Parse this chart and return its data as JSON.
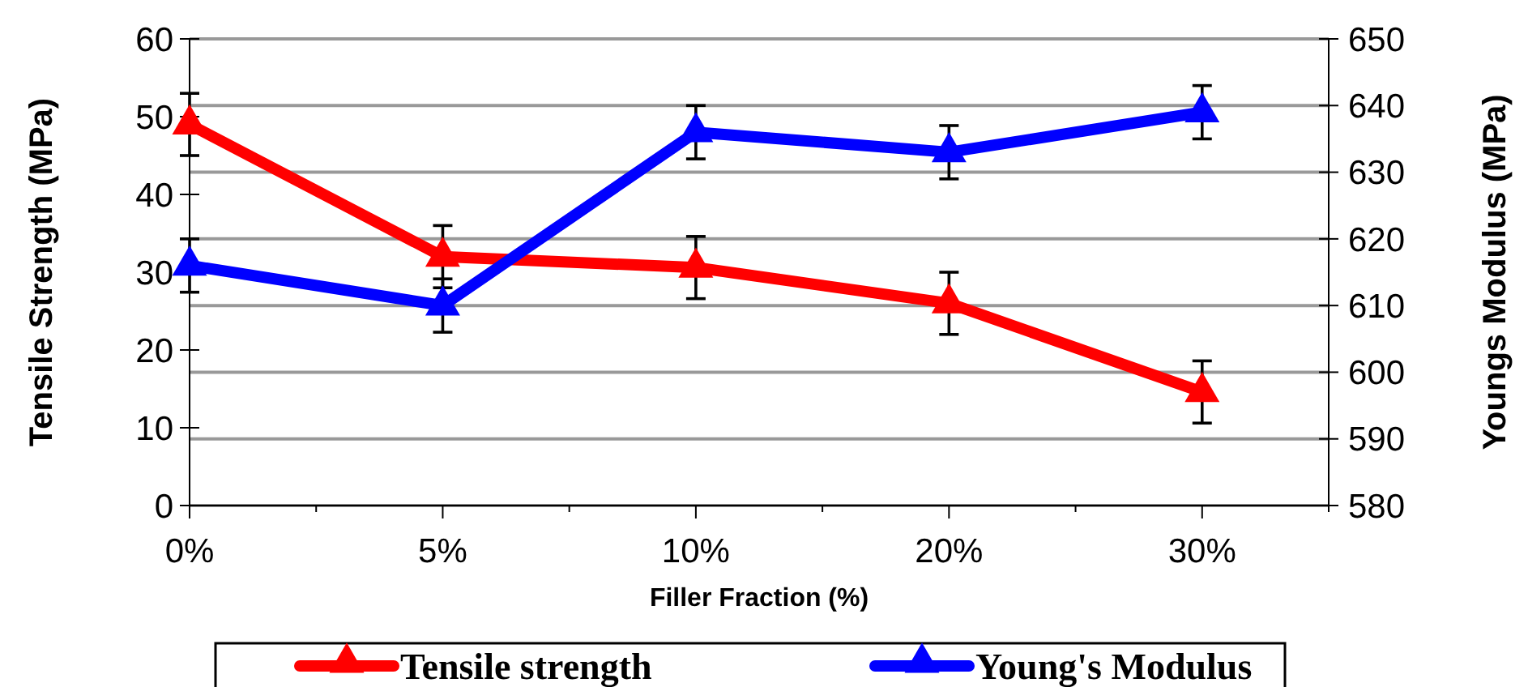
{
  "chart_data": {
    "type": "line",
    "xlabel": "Filler  Fraction (%)",
    "ylabel": "Tensile Strength (MPa)",
    "y2label": "Youngs Modulus (MPa)",
    "categories": [
      "0%",
      "5%",
      "10%",
      "20%",
      "30%"
    ],
    "series": [
      {
        "name": "Tensile strength",
        "color": "#ff0000",
        "values": [
          49,
          32,
          30.6,
          26,
          14.6
        ],
        "errors": [
          4,
          4,
          4,
          4,
          4
        ]
      },
      {
        "name": "Young's Modulus",
        "color": "#0000ff",
        "axis": "y2",
        "values": [
          616,
          610,
          636,
          633,
          639
        ],
        "errors": [
          4,
          4,
          4,
          4,
          4
        ]
      }
    ],
    "ylim": [
      0,
      60
    ],
    "yticks": [
      0,
      10,
      20,
      30,
      40,
      50,
      60
    ],
    "y2lim": [
      580,
      650
    ],
    "y2ticks": [
      580,
      590,
      600,
      610,
      620,
      630,
      640,
      650
    ],
    "grid": "y",
    "legend": "bottom",
    "marker": "triangle",
    "line_style": "solid"
  }
}
